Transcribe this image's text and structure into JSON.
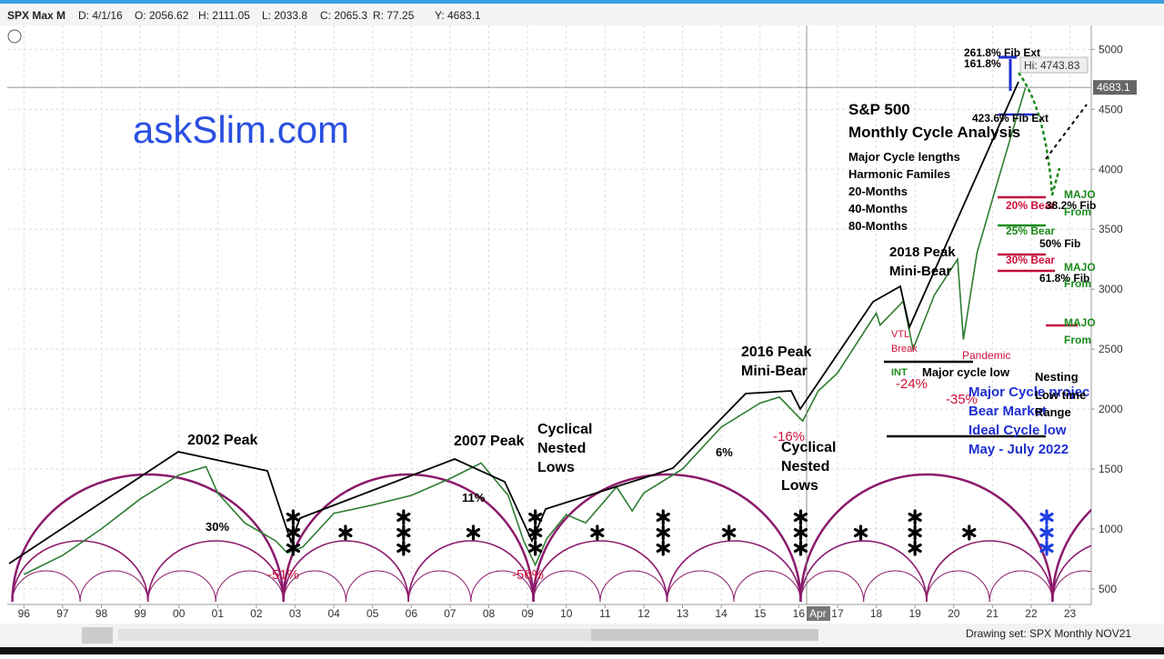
{
  "toolbar": {
    "symbol": "SPX Max M",
    "date": "D: 4/1/16",
    "open": "O: 2056.62",
    "high": "H: 2111.05",
    "low": "L: 2033.8",
    "close": "C: 2065.3",
    "range": "R: 77.25",
    "y_value": "Y: 4683.1"
  },
  "footer": {
    "drawing_set": "Drawing set: SPX Monthly NOV21",
    "crosshair_month": "Apr"
  },
  "watermark": "askSlim.com",
  "chart_data": {
    "type": "line",
    "x": [
      1996,
      1997,
      1998,
      1999,
      2000,
      2000.7,
      2001,
      2001.7,
      2002.5,
      2002.8,
      2003.2,
      2004,
      2005,
      2006,
      2007,
      2007.8,
      2008.5,
      2008.9,
      2009.2,
      2009.5,
      2010,
      2010.5,
      2011.3,
      2011.7,
      2012,
      2013,
      2014,
      2015,
      2015.5,
      2016.1,
      2016.5,
      2017,
      2018,
      2018.1,
      2018.7,
      2018.95,
      2019.5,
      2020.1,
      2020.25,
      2020.6,
      2021,
      2021.5,
      2021.85
    ],
    "series": [
      {
        "color": "#2e7d32",
        "values": [
          620,
          780,
          1000,
          1250,
          1450,
          1520,
          1300,
          1050,
          900,
          800,
          850,
          1130,
          1200,
          1280,
          1420,
          1550,
          1280,
          900,
          700,
          920,
          1120,
          1050,
          1350,
          1150,
          1300,
          1500,
          1850,
          2050,
          2100,
          1900,
          2150,
          2300,
          2800,
          2700,
          2900,
          2500,
          2950,
          3250,
          2580,
          3300,
          3750,
          4300,
          4680
        ]
      }
    ],
    "xlim": [
      1995.57,
      2023.55
    ],
    "ylim": [
      370,
      5200
    ],
    "xticks": [
      {
        "value": 1996,
        "label": "96"
      },
      {
        "value": 1997,
        "label": "97"
      },
      {
        "value": 1998,
        "label": "98"
      },
      {
        "value": 1999,
        "label": "99"
      },
      {
        "value": 2000,
        "label": "00"
      },
      {
        "value": 2001,
        "label": "01"
      },
      {
        "value": 2002,
        "label": "02"
      },
      {
        "value": 2003,
        "label": "03"
      },
      {
        "value": 2004,
        "label": "04"
      },
      {
        "value": 2005,
        "label": "05"
      },
      {
        "value": 2006,
        "label": "06"
      },
      {
        "value": 2007,
        "label": "07"
      },
      {
        "value": 2008,
        "label": "08"
      },
      {
        "value": 2009,
        "label": "09"
      },
      {
        "value": 2010,
        "label": "10"
      },
      {
        "value": 2011,
        "label": "11"
      },
      {
        "value": 2012,
        "label": "12"
      },
      {
        "value": 2013,
        "label": "13"
      },
      {
        "value": 2014,
        "label": "14"
      },
      {
        "value": 2015,
        "label": "15"
      },
      {
        "value": 2016,
        "label": "16"
      },
      {
        "value": 2017,
        "label": "17"
      },
      {
        "value": 2018,
        "label": "18"
      },
      {
        "value": 2019,
        "label": "19"
      },
      {
        "value": 2020,
        "label": "20"
      },
      {
        "value": 2021,
        "label": "21"
      },
      {
        "value": 2022,
        "label": "22"
      },
      {
        "value": 2023,
        "label": "23"
      }
    ],
    "yticks": [
      500,
      1000,
      1500,
      2000,
      2500,
      3000,
      3500,
      4000,
      4500,
      5000
    ],
    "grid": true,
    "last_price": 4683.1,
    "high_label": "Hi: 4743.83",
    "cycle_lows": [
      1995.7,
      2002.7,
      2009.15,
      2016.05,
      2022.55
    ],
    "cycle_markers": [
      {
        "x": 2002.95,
        "count": 3,
        "color": "#000000"
      },
      {
        "x": 2004.3,
        "count": 1,
        "color": "#000000"
      },
      {
        "x": 2005.8,
        "count": 3,
        "color": "#000000"
      },
      {
        "x": 2007.6,
        "count": 1,
        "color": "#000000"
      },
      {
        "x": 2009.2,
        "count": 3,
        "color": "#000000"
      },
      {
        "x": 2010.8,
        "count": 1,
        "color": "#000000"
      },
      {
        "x": 2012.5,
        "count": 3,
        "color": "#000000"
      },
      {
        "x": 2014.2,
        "count": 1,
        "color": "#000000"
      },
      {
        "x": 2016.05,
        "count": 3,
        "color": "#000000"
      },
      {
        "x": 2017.6,
        "count": 1,
        "color": "#000000"
      },
      {
        "x": 2019.0,
        "count": 3,
        "color": "#000000"
      },
      {
        "x": 2020.4,
        "count": 1,
        "color": "#000000"
      },
      {
        "x": 2022.4,
        "count": 3,
        "color": "#1f3fe0"
      }
    ],
    "annotations": [
      {
        "text": "2002 Peak",
        "color": "#000000"
      },
      {
        "text": "30%",
        "color": "#000000"
      },
      {
        "text": "-51%",
        "color": "#d0103a"
      },
      {
        "text": "2007 Peak",
        "color": "#000000"
      },
      {
        "text": "11%",
        "color": "#000000"
      },
      {
        "text": "-56%",
        "color": "#d0103a"
      },
      {
        "text": "Cyclical",
        "color": "#000000"
      },
      {
        "text": "Nested",
        "color": "#000000"
      },
      {
        "text": "Lows",
        "color": "#000000"
      },
      {
        "text": "6%",
        "color": "#000000"
      },
      {
        "text": "2016 Peak",
        "color": "#000000"
      },
      {
        "text": "Mini-Bear",
        "color": "#000000"
      },
      {
        "text": "-16%",
        "color": "#d0103a"
      },
      {
        "text": "Cyclical",
        "color": "#000000"
      },
      {
        "text": "Nested",
        "color": "#000000"
      },
      {
        "text": "Lows",
        "color": "#000000"
      },
      {
        "text": "S&P 500",
        "color": "#000000"
      },
      {
        "text": "Monthly Cycle Analysis",
        "color": "#000000"
      },
      {
        "text": "Major Cycle lengths",
        "color": "#000000"
      },
      {
        "text": "Harmonic Familes",
        "color": "#000000"
      },
      {
        "text": "20-Months",
        "color": "#000000"
      },
      {
        "text": "40-Months",
        "color": "#000000"
      },
      {
        "text": "80-Months",
        "color": "#000000"
      },
      {
        "text": "2018 Peak",
        "color": "#000000"
      },
      {
        "text": "Mini-Bear",
        "color": "#000000"
      },
      {
        "text": "VTL",
        "color": "#d0103a"
      },
      {
        "text": "Break",
        "color": "#d0103a"
      },
      {
        "text": "Pandemic",
        "color": "#d0103a"
      },
      {
        "text": "INT",
        "color": "#1b8a1b"
      },
      {
        "text": "Major cycle low",
        "color": "#000000"
      },
      {
        "text": "-24%",
        "color": "#d0103a"
      },
      {
        "text": "-35%",
        "color": "#d0103a"
      },
      {
        "text": "Major Cycle projec",
        "color": "#1f2fd0"
      },
      {
        "text": "Bear Market",
        "color": "#1f2fd0"
      },
      {
        "text": "Ideal Cycle low",
        "color": "#1f2fd0"
      },
      {
        "text": "May - July 2022",
        "color": "#1f2fd0"
      },
      {
        "text": "Nesting",
        "color": "#000000"
      },
      {
        "text": "Low time",
        "color": "#000000"
      },
      {
        "text": "Range",
        "color": "#000000"
      },
      {
        "text": "261.8% Fib Ext",
        "color": "#000000"
      },
      {
        "text": "161.8%",
        "color": "#000000"
      },
      {
        "text": "423.6% Fib Ext",
        "color": "#000000"
      },
      {
        "text": "20% Bear",
        "color": "#d0103a"
      },
      {
        "text": "38.2% Fib",
        "color": "#000000"
      },
      {
        "text": "25% Bear",
        "color": "#1b8a1b"
      },
      {
        "text": "50% Fib",
        "color": "#000000"
      },
      {
        "text": "30% Bear",
        "color": "#d0103a"
      },
      {
        "text": "61.8% Fib",
        "color": "#000000"
      },
      {
        "text": "MAJO",
        "color": "#1b8a1b"
      },
      {
        "text": "From",
        "color": "#1b8a1b"
      },
      {
        "text": "MAJO",
        "color": "#1b8a1b"
      },
      {
        "text": "From",
        "color": "#1b8a1b"
      },
      {
        "text": "MAJO",
        "color": "#1b8a1b"
      },
      {
        "text": "From",
        "color": "#1b8a1b"
      }
    ]
  }
}
